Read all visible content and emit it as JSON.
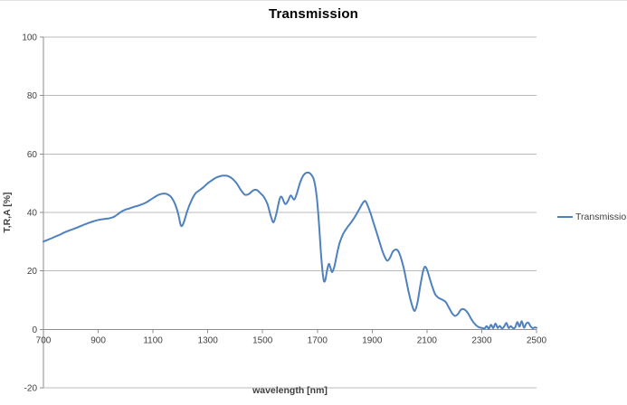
{
  "title": "Transmission",
  "chart_data": {
    "type": "line",
    "title": "Transmission",
    "xlabel": "wavelength [nm]",
    "ylabel": "T,R,A [%]",
    "xlim": [
      700,
      2500
    ],
    "ylim": [
      -20,
      100
    ],
    "x_ticks": [
      700,
      900,
      1100,
      1300,
      1500,
      1700,
      1900,
      2100,
      2300,
      2500
    ],
    "y_ticks": [
      -20,
      0,
      20,
      40,
      60,
      80,
      100
    ],
    "grid": "horizontal",
    "legend_position": "right",
    "colors": {
      "series": "#4F81BD",
      "gridline": "#bbbbbb",
      "axis": "#8e8e8e",
      "tick_text": "#404040"
    },
    "series": [
      {
        "name": "Transmission",
        "color": "#4F81BD",
        "points": [
          [
            700,
            30
          ],
          [
            715,
            30.6
          ],
          [
            730,
            31.2
          ],
          [
            745,
            31.8
          ],
          [
            760,
            32.4
          ],
          [
            775,
            33.1
          ],
          [
            790,
            33.7
          ],
          [
            805,
            34.2
          ],
          [
            820,
            34.7
          ],
          [
            835,
            35.3
          ],
          [
            850,
            35.9
          ],
          [
            865,
            36.4
          ],
          [
            880,
            36.9
          ],
          [
            895,
            37.3
          ],
          [
            910,
            37.6
          ],
          [
            925,
            37.8
          ],
          [
            940,
            38.0
          ],
          [
            955,
            38.4
          ],
          [
            970,
            39.3
          ],
          [
            985,
            40.3
          ],
          [
            1000,
            41.0
          ],
          [
            1015,
            41.4
          ],
          [
            1030,
            41.9
          ],
          [
            1045,
            42.3
          ],
          [
            1060,
            42.8
          ],
          [
            1075,
            43.4
          ],
          [
            1090,
            44.3
          ],
          [
            1105,
            45.2
          ],
          [
            1120,
            46.0
          ],
          [
            1135,
            46.4
          ],
          [
            1150,
            46.3
          ],
          [
            1165,
            45.4
          ],
          [
            1180,
            43.0
          ],
          [
            1192,
            39.5
          ],
          [
            1202,
            35.5
          ],
          [
            1212,
            36.5
          ],
          [
            1225,
            40.5
          ],
          [
            1240,
            44.0
          ],
          [
            1255,
            46.5
          ],
          [
            1270,
            47.6
          ],
          [
            1285,
            48.7
          ],
          [
            1300,
            50.0
          ],
          [
            1315,
            51.0
          ],
          [
            1330,
            51.9
          ],
          [
            1345,
            52.4
          ],
          [
            1360,
            52.6
          ],
          [
            1375,
            52.4
          ],
          [
            1390,
            51.5
          ],
          [
            1405,
            50.0
          ],
          [
            1420,
            47.8
          ],
          [
            1435,
            46.1
          ],
          [
            1450,
            46.3
          ],
          [
            1465,
            47.5
          ],
          [
            1478,
            47.7
          ],
          [
            1492,
            46.6
          ],
          [
            1505,
            45.3
          ],
          [
            1518,
            42.8
          ],
          [
            1530,
            38.8
          ],
          [
            1540,
            36.6
          ],
          [
            1550,
            39.5
          ],
          [
            1562,
            44.5
          ],
          [
            1570,
            45.3
          ],
          [
            1582,
            42.9
          ],
          [
            1592,
            43.8
          ],
          [
            1603,
            45.8
          ],
          [
            1615,
            44.4
          ],
          [
            1625,
            46.5
          ],
          [
            1638,
            50.5
          ],
          [
            1650,
            52.8
          ],
          [
            1662,
            53.6
          ],
          [
            1675,
            53.2
          ],
          [
            1688,
            51.0
          ],
          [
            1698,
            45.0
          ],
          [
            1706,
            36.0
          ],
          [
            1714,
            25.0
          ],
          [
            1722,
            17.5
          ],
          [
            1728,
            16.6
          ],
          [
            1736,
            20.5
          ],
          [
            1742,
            22.4
          ],
          [
            1748,
            21.0
          ],
          [
            1754,
            19.6
          ],
          [
            1762,
            21.5
          ],
          [
            1772,
            26.0
          ],
          [
            1782,
            29.8
          ],
          [
            1795,
            32.8
          ],
          [
            1810,
            35.0
          ],
          [
            1825,
            36.8
          ],
          [
            1840,
            39.0
          ],
          [
            1855,
            41.5
          ],
          [
            1868,
            43.5
          ],
          [
            1876,
            43.8
          ],
          [
            1885,
            42.0
          ],
          [
            1895,
            39.5
          ],
          [
            1905,
            36.5
          ],
          [
            1915,
            33.5
          ],
          [
            1925,
            30.5
          ],
          [
            1935,
            27.5
          ],
          [
            1945,
            25.0
          ],
          [
            1955,
            23.5
          ],
          [
            1965,
            24.5
          ],
          [
            1975,
            26.5
          ],
          [
            1985,
            27.3
          ],
          [
            1995,
            26.8
          ],
          [
            2005,
            24.5
          ],
          [
            2015,
            21.0
          ],
          [
            2025,
            16.5
          ],
          [
            2035,
            12.0
          ],
          [
            2045,
            8.5
          ],
          [
            2055,
            6.3
          ],
          [
            2065,
            9.0
          ],
          [
            2075,
            14.5
          ],
          [
            2085,
            19.5
          ],
          [
            2092,
            21.4
          ],
          [
            2100,
            20.5
          ],
          [
            2110,
            17.5
          ],
          [
            2120,
            14.5
          ],
          [
            2130,
            12.0
          ],
          [
            2142,
            10.8
          ],
          [
            2155,
            10.2
          ],
          [
            2168,
            9.4
          ],
          [
            2180,
            7.5
          ],
          [
            2192,
            5.5
          ],
          [
            2203,
            4.6
          ],
          [
            2213,
            5.2
          ],
          [
            2222,
            6.5
          ],
          [
            2230,
            7.0
          ],
          [
            2240,
            6.6
          ],
          [
            2250,
            5.5
          ],
          [
            2262,
            3.5
          ],
          [
            2275,
            1.8
          ],
          [
            2288,
            0.8
          ],
          [
            2300,
            0.5
          ],
          [
            2310,
            0.3
          ],
          [
            2318,
            1.1
          ],
          [
            2326,
            0.2
          ],
          [
            2334,
            1.6
          ],
          [
            2342,
            0.4
          ],
          [
            2350,
            2.0
          ],
          [
            2358,
            0.5
          ],
          [
            2366,
            1.2
          ],
          [
            2374,
            0.3
          ],
          [
            2382,
            1.0
          ],
          [
            2390,
            2.2
          ],
          [
            2398,
            0.5
          ],
          [
            2406,
            1.1
          ],
          [
            2414,
            0.4
          ],
          [
            2422,
            0.7
          ],
          [
            2430,
            2.5
          ],
          [
            2438,
            0.9
          ],
          [
            2446,
            2.8
          ],
          [
            2454,
            0.6
          ],
          [
            2462,
            1.9
          ],
          [
            2470,
            2.3
          ],
          [
            2478,
            1.1
          ],
          [
            2486,
            0.4
          ],
          [
            2494,
            0.7
          ],
          [
            2500,
            0.5
          ]
        ]
      }
    ]
  }
}
